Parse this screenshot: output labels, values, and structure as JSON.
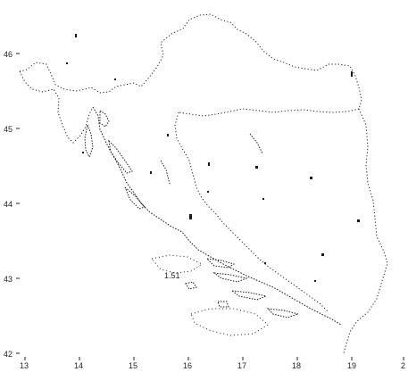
{
  "map": {
    "colors": {
      "outline": "#1a1a1a",
      "background": "#ffffff"
    },
    "x_axis": {
      "ticks": [
        "13",
        "14",
        "15",
        "16",
        "17",
        "18",
        "19",
        "2"
      ]
    },
    "y_axis": {
      "ticks": [
        "46",
        "45",
        "44",
        "43",
        "42"
      ]
    },
    "annotation": "1.51"
  }
}
